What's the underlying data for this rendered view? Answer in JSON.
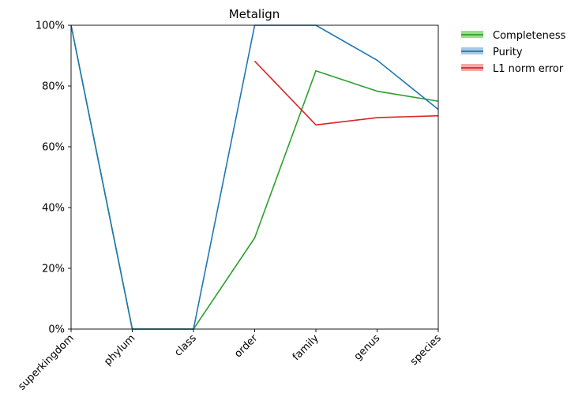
{
  "chart_data": {
    "type": "line",
    "title": "Metalign",
    "xlabel": "",
    "ylabel": "",
    "categories": [
      "superkingdom",
      "phylum",
      "class",
      "order",
      "family",
      "genus",
      "species"
    ],
    "ylim": [
      0,
      100
    ],
    "yticks": [
      0,
      20,
      40,
      60,
      80,
      100
    ],
    "ytick_labels": [
      "0%",
      "20%",
      "40%",
      "60%",
      "80%",
      "100%"
    ],
    "grid": false,
    "legend_position": "outside top-right",
    "series": [
      {
        "name": "Completeness",
        "color": "#2ca02c",
        "band_color": "#98df8a",
        "values": [
          100,
          0,
          0,
          30,
          85,
          78.3,
          75
        ]
      },
      {
        "name": "Purity",
        "color": "#1f77b4",
        "band_color": "#a6c8e4",
        "values": [
          100,
          0,
          0,
          100,
          100,
          88.5,
          72.3
        ]
      },
      {
        "name": "L1 norm error",
        "color": "#d62728",
        "band_color": "#f1a9a9",
        "values": [
          null,
          null,
          null,
          88.2,
          67.2,
          69.6,
          70.2
        ]
      }
    ]
  }
}
